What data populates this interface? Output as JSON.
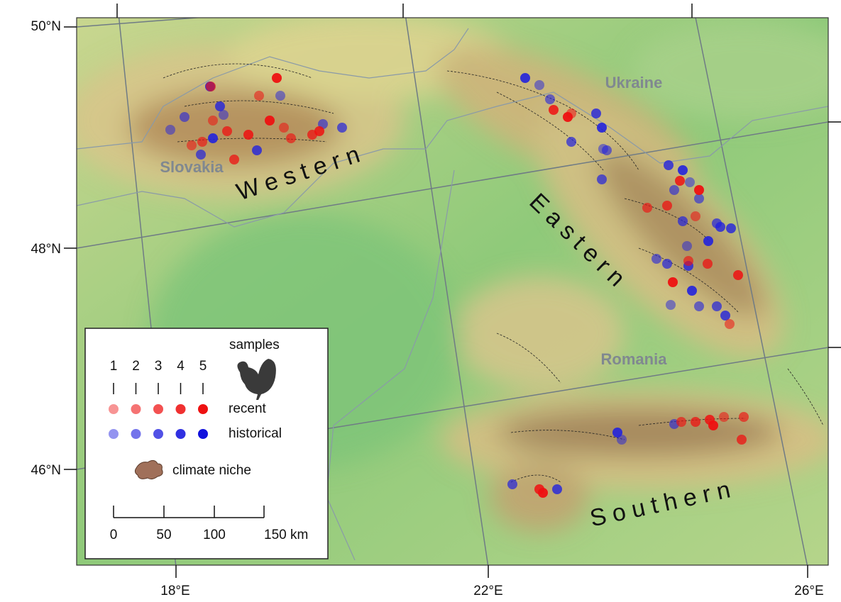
{
  "axes": {
    "latitude": [
      "50°N",
      "48°N",
      "46°N"
    ],
    "longitude": [
      "18°E",
      "22°E",
      "26°E"
    ]
  },
  "regions": [
    "Western",
    "Eastern",
    "Southern"
  ],
  "countries": [
    "Slovakia",
    "Ukraine",
    "Romania"
  ],
  "legend": {
    "samples": "samples",
    "levels": [
      "1",
      "2",
      "3",
      "4",
      "5"
    ],
    "recent": "recent",
    "historical": "historical",
    "climate_niche": "climate niche",
    "scale": [
      "0",
      "50",
      "100",
      "150 km"
    ]
  }
}
